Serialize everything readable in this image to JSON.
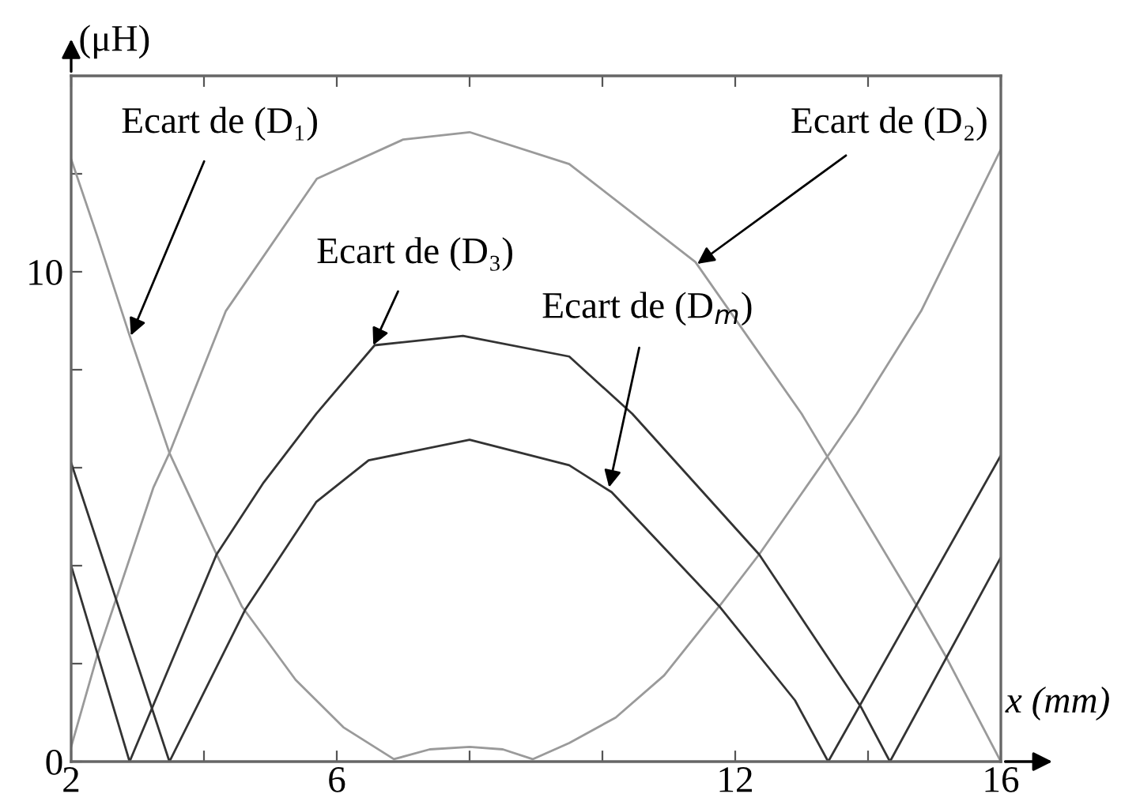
{
  "chart_data": {
    "type": "line",
    "xlabel": "x (mm)",
    "ylabel": "(μH)",
    "xlim": [
      2,
      16
    ],
    "ylim": [
      0,
      14
    ],
    "xticks": [
      2,
      {
        "value": 4,
        "label": null
      },
      6,
      {
        "value": 8,
        "label": null
      },
      {
        "value": 10,
        "label": null
      },
      12,
      {
        "value": 14,
        "label": null
      },
      16
    ],
    "yticks": [
      0,
      {
        "value": 2,
        "label": null
      },
      {
        "value": 4,
        "label": null
      },
      {
        "value": 6,
        "label": null
      },
      {
        "value": 8,
        "label": null
      },
      10,
      {
        "value": 12,
        "label": null
      }
    ],
    "grid": false,
    "legend": false,
    "marker": "none",
    "line_style": "solid",
    "series": [
      {
        "color": "#9a9a9a",
        "x": [
          2,
          2.4,
          2.88,
          3.48,
          4.19,
          4.57,
          5.38,
          6.1,
          6.86,
          7.4,
          8,
          8.5,
          8.95,
          9.5,
          10.2,
          10.93,
          11.76,
          12.36,
          13.43,
          13.83,
          14.8,
          16
        ],
        "values": [
          12.3,
          10.7,
          8.7,
          6.3,
          4.23,
          3.17,
          1.67,
          0.7,
          0.05,
          0.25,
          0.3,
          0.25,
          0.05,
          0.38,
          0.9,
          1.76,
          3.17,
          4.23,
          6.31,
          7.1,
          9.2,
          12.5
        ]
      },
      {
        "color": "#9a9a9a",
        "x": [
          2,
          2.4,
          2.64,
          3.24,
          3.48,
          4.33,
          5.7,
          7,
          8,
          9.5,
          11.4,
          13.0,
          14.74,
          15.17,
          16
        ],
        "values": [
          0.3,
          2.2,
          3.17,
          5.6,
          6.3,
          9.2,
          11.9,
          12.7,
          12.85,
          12.2,
          10.2,
          7.1,
          3.17,
          2.15,
          0
        ]
      },
      {
        "color": "#333333",
        "x": [
          2,
          2.88,
          4.19,
          4.9,
          5.69,
          6.57,
          7.9,
          9.5,
          10.45,
          12.36,
          13.9,
          14.33,
          16
        ],
        "values": [
          4.0,
          0,
          4.23,
          5.7,
          7.1,
          8.5,
          8.69,
          8.27,
          7.1,
          4.23,
          1.1,
          0,
          4.17
        ]
      },
      {
        "color": "#333333",
        "x": [
          2,
          3.48,
          4.62,
          5.69,
          6.48,
          8,
          9.5,
          10.14,
          11.76,
          12.9,
          13.4,
          16
        ],
        "values": [
          6.1,
          0,
          3.1,
          5.3,
          6.15,
          6.57,
          6.05,
          5.5,
          3.17,
          1.25,
          0,
          6.25
        ]
      }
    ],
    "annotations": [
      {
        "text": "Ecart de (D₁)",
        "x": 2.9,
        "y": 8.7
      },
      {
        "text": "Ecart de (D₂)",
        "x": 11.43,
        "y": 10.16
      },
      {
        "text": "Ecart de (D₃)",
        "x": 6.55,
        "y": 8.5
      },
      {
        "text": "Ecart de (D$_{m}$)",
        "x": 10.1,
        "y": 5.6
      }
    ]
  }
}
